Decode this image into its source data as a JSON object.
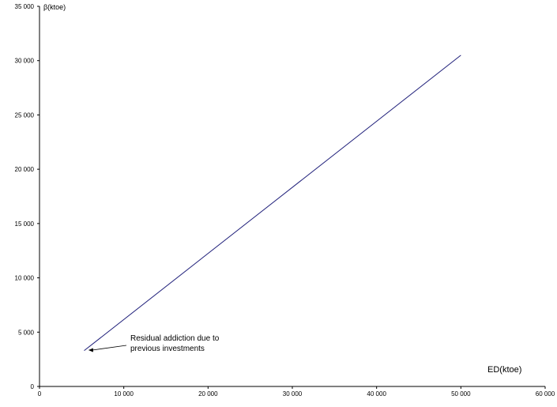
{
  "chart_data": {
    "type": "line",
    "title": "",
    "xlabel": "ED(ktoe)",
    "ylabel": "β(ktoe)",
    "xlim": [
      0,
      60000
    ],
    "ylim": [
      0,
      35000
    ],
    "x_ticks": [
      0,
      10000,
      20000,
      30000,
      40000,
      50000,
      60000
    ],
    "x_tick_labels": [
      "0",
      "10 000",
      "20 000",
      "30 000",
      "40 000",
      "50 000",
      "60 000"
    ],
    "y_ticks": [
      0,
      5000,
      10000,
      15000,
      20000,
      25000,
      30000,
      35000
    ],
    "y_tick_labels": [
      "0",
      "5 000",
      "10 000",
      "15 000",
      "20 000",
      "25 000",
      "30 000",
      "35 000"
    ],
    "grid": false,
    "series": [
      {
        "color": "#1f1f7a",
        "x": [
          5300,
          50000
        ],
        "y": [
          3300,
          30500
        ]
      }
    ],
    "annotation": {
      "lines": [
        "Residual addiction due to",
        "previous investments"
      ],
      "points_to": {
        "x": 5800,
        "y": 3350
      }
    }
  }
}
